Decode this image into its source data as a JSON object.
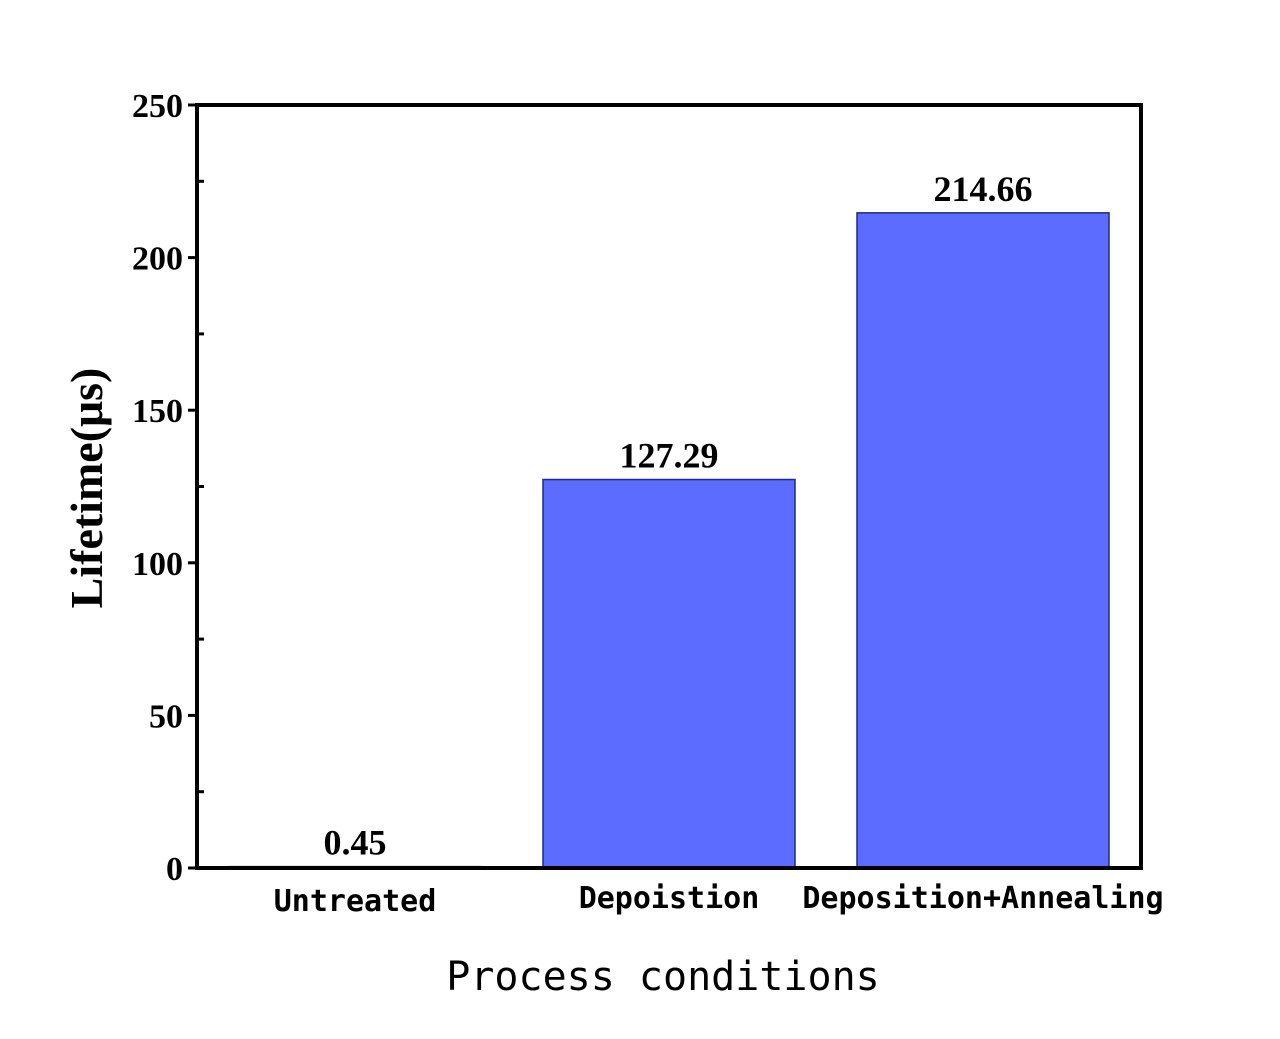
{
  "chart_data": {
    "type": "bar",
    "categories": [
      "Untreated",
      "Depoistion",
      "Deposition+Annealing"
    ],
    "values": [
      0.45,
      127.29,
      214.66
    ],
    "value_labels": [
      "0.45",
      "127.29",
      "214.66"
    ],
    "xlabel": "Process conditions",
    "ylabel": "Lifetime(μs)",
    "ylim": [
      0,
      250
    ],
    "yticks": [
      0,
      50,
      100,
      150,
      200,
      250
    ],
    "bar_color": "#5b6cff",
    "grid": false,
    "legend": "none"
  }
}
